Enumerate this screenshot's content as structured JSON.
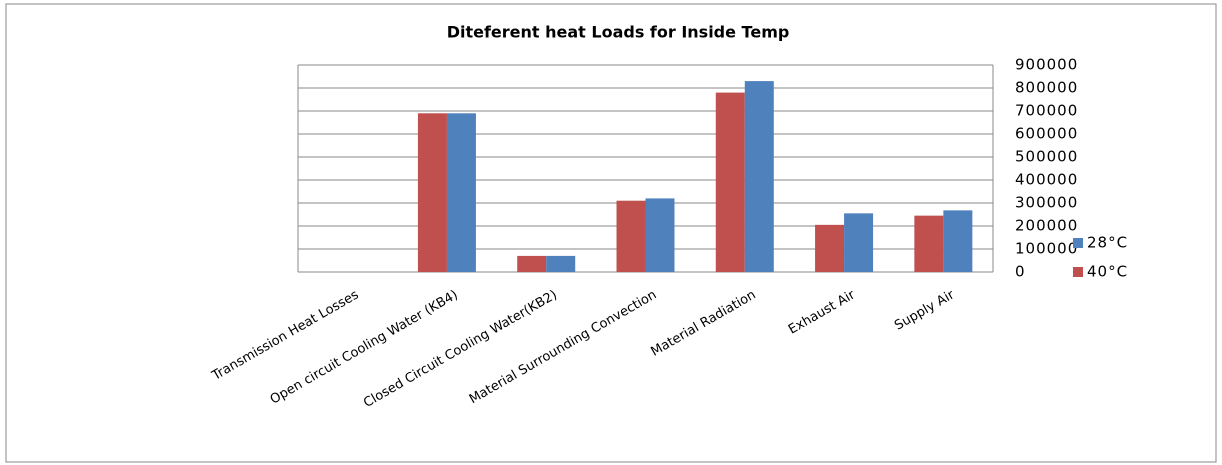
{
  "chart_data": {
    "type": "bar",
    "title": "Diteferent heat Loads for Inside Temp",
    "categories": [
      "Transmission Heat Losses",
      "Open circuit Cooling Water (KB4)",
      "Closed Circuit Cooling Water(KB2)",
      "Material Surrounding Convection",
      "Material Radiation",
      "Exhaust Air",
      "Supply Air"
    ],
    "series": [
      {
        "name": "40°C",
        "color": "#c0504d",
        "values": [
          0,
          690000,
          70000,
          310000,
          780000,
          205000,
          245000
        ]
      },
      {
        "name": "28°C",
        "color": "#4f81bd",
        "values": [
          0,
          690000,
          70000,
          320000,
          830000,
          255000,
          268000
        ]
      }
    ],
    "ylim": [
      0,
      900000
    ],
    "yticks": [
      0,
      100000,
      200000,
      300000,
      400000,
      500000,
      600000,
      700000,
      800000,
      900000
    ],
    "grid": true,
    "y_axis_side": "right",
    "legend": "right"
  }
}
